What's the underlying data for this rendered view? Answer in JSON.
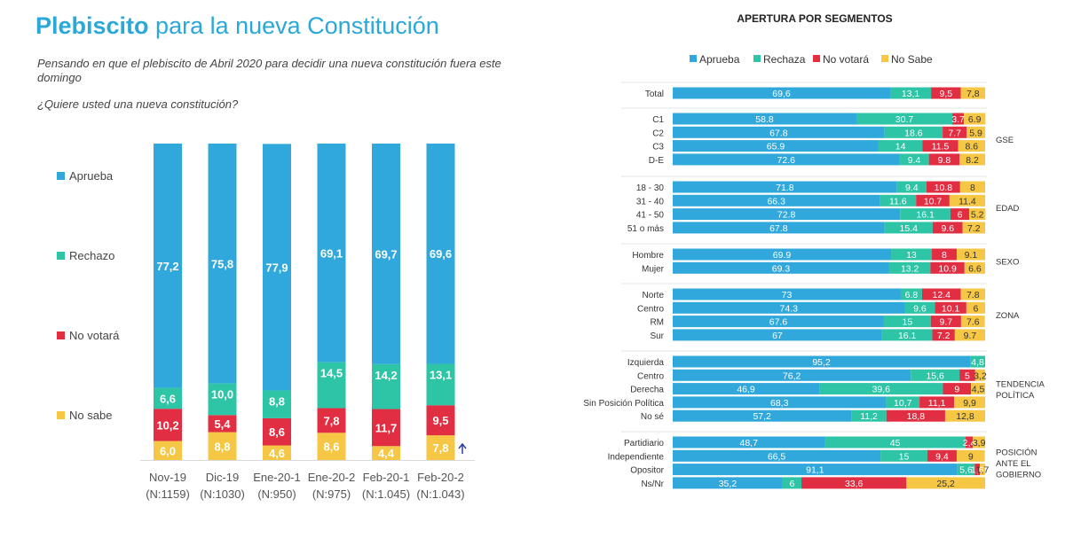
{
  "colors": {
    "aprueba": "#31a8dc",
    "rechazo": "#2ec4a6",
    "no_votara": "#e12e43",
    "no_sabe": "#f6c744",
    "title_blue": "#2aa8d8",
    "arrow": "#2c3e9c"
  },
  "header": {
    "title_bold": "Plebiscito",
    "title_rest": " para la nueva Constitución",
    "subtitle": "Pensando en que el plebiscito de Abril 2020 para decidir una nueva constitución fuera este domingo",
    "question": "¿Quiere usted una nueva constitución?"
  },
  "chart_data": [
    {
      "type": "bar",
      "stacked": true,
      "title": "¿Quiere usted una nueva constitución?",
      "categories": [
        "Nov-19",
        "Dic-19",
        "Ene-20-1",
        "Ene-20-2",
        "Feb-20-1",
        "Feb-20-2"
      ],
      "sample_labels": [
        "(N:1159)",
        "(N:1030)",
        "(N:950)",
        "(N:975)",
        "(N:1.045)",
        "(N:1.043)"
      ],
      "series": [
        {
          "name": "No sabe",
          "key": "no_sabe",
          "values": [
            6.0,
            8.8,
            4.6,
            8.6,
            4.4,
            7.8
          ],
          "labels": [
            "6,0",
            "8,8",
            "4,6",
            "8,6",
            "4,4",
            "7,8"
          ]
        },
        {
          "name": "No votará",
          "key": "no_votara",
          "values": [
            10.2,
            5.4,
            8.6,
            7.8,
            11.7,
            9.5
          ],
          "labels": [
            "10,2",
            "5,4",
            "8,6",
            "7,8",
            "11,7",
            "9,5"
          ]
        },
        {
          "name": "Rechazo",
          "key": "rechazo",
          "values": [
            6.6,
            10.0,
            8.8,
            14.5,
            14.2,
            13.1
          ],
          "labels": [
            "6,6",
            "10,0",
            "8,8",
            "14,5",
            "14,2",
            "13,1"
          ]
        },
        {
          "name": "Aprueba",
          "key": "aprueba",
          "values": [
            77.2,
            75.8,
            77.9,
            69.1,
            69.7,
            69.6
          ],
          "labels": [
            "77,2",
            "75,8",
            "77,9",
            "69,1",
            "69,7",
            "69,6"
          ]
        }
      ],
      "legend": [
        "Aprueba",
        "Rechazo",
        "No votará",
        "No sabe"
      ],
      "ylim": [
        0,
        100
      ]
    },
    {
      "type": "bar",
      "orientation": "horizontal",
      "stacked": true,
      "title": "APERTURA POR SEGMENTOS",
      "legend": [
        "Aprueba",
        "Rechaza",
        "No votará",
        "No Sabe"
      ],
      "groups": [
        {
          "label": "",
          "rows": [
            {
              "label": "Total",
              "values": [
                69.6,
                13.1,
                9.5,
                7.8
              ],
              "texts": [
                "69,6",
                "13,1",
                "9,5",
                "7,8"
              ]
            }
          ]
        },
        {
          "label": "GSE",
          "rows": [
            {
              "label": "C1",
              "values": [
                58.8,
                30.7,
                3.7,
                6.9
              ],
              "texts": [
                "58.8",
                "30.7",
                "3.7",
                "6.9"
              ]
            },
            {
              "label": "C2",
              "values": [
                67.8,
                18.6,
                7.7,
                5.9
              ],
              "texts": [
                "67.8",
                "18.6",
                "7.7",
                "5.9"
              ]
            },
            {
              "label": "C3",
              "values": [
                65.9,
                14,
                11.5,
                8.6
              ],
              "texts": [
                "65.9",
                "14",
                "11.5",
                "8.6"
              ]
            },
            {
              "label": "D-E",
              "values": [
                72.6,
                9.4,
                9.8,
                8.2
              ],
              "texts": [
                "72.6",
                "9.4",
                "9.8",
                "8.2"
              ]
            }
          ]
        },
        {
          "label": "EDAD",
          "rows": [
            {
              "label": "18 - 30",
              "values": [
                71.8,
                9.4,
                10.8,
                8
              ],
              "texts": [
                "71.8",
                "9.4",
                "10.8",
                "8"
              ]
            },
            {
              "label": "31 - 40",
              "values": [
                66.3,
                11.6,
                10.7,
                11.4
              ],
              "texts": [
                "66.3",
                "11.6",
                "10.7",
                "11.4"
              ]
            },
            {
              "label": "41 - 50",
              "values": [
                72.8,
                16.1,
                6,
                5.2
              ],
              "texts": [
                "72.8",
                "16.1",
                "6",
                "5.2"
              ]
            },
            {
              "label": "51 o más",
              "values": [
                67.8,
                15.4,
                9.6,
                7.2
              ],
              "texts": [
                "67.8",
                "15.4",
                "9.6",
                "7.2"
              ]
            }
          ]
        },
        {
          "label": "SEXO",
          "rows": [
            {
              "label": "Hombre",
              "values": [
                69.9,
                13,
                8,
                9.1
              ],
              "texts": [
                "69.9",
                "13",
                "8",
                "9.1"
              ]
            },
            {
              "label": "Mujer",
              "values": [
                69.3,
                13.2,
                10.9,
                6.6
              ],
              "texts": [
                "69.3",
                "13.2",
                "10.9",
                "6.6"
              ]
            }
          ]
        },
        {
          "label": "ZONA",
          "rows": [
            {
              "label": "Norte",
              "values": [
                73,
                6.8,
                12.4,
                7.8
              ],
              "texts": [
                "73",
                "6.8",
                "12.4",
                "7.8"
              ]
            },
            {
              "label": "Centro",
              "values": [
                74.3,
                9.6,
                10.1,
                6
              ],
              "texts": [
                "74.3",
                "9.6",
                "10.1",
                "6"
              ]
            },
            {
              "label": "RM",
              "values": [
                67.6,
                15,
                9.7,
                7.6
              ],
              "texts": [
                "67.6",
                "15",
                "9.7",
                "7.6"
              ]
            },
            {
              "label": "Sur",
              "values": [
                67,
                16.1,
                7.2,
                9.7
              ],
              "texts": [
                "67",
                "16.1",
                "7.2",
                "9.7"
              ]
            }
          ]
        },
        {
          "label": "TENDENCIA POLÍTICA",
          "rows": [
            {
              "label": "Izquierda",
              "values": [
                95.2,
                4.8,
                0,
                0
              ],
              "texts": [
                "95,2",
                "4,8",
                "",
                ""
              ]
            },
            {
              "label": "Centro",
              "values": [
                76.2,
                15.6,
                5,
                3.2
              ],
              "texts": [
                "76,2",
                "15,6",
                "5",
                "3,2"
              ]
            },
            {
              "label": "Derecha",
              "values": [
                46.9,
                39.6,
                9,
                4.5
              ],
              "texts": [
                "46,9",
                "39,6",
                "9",
                "4,5"
              ]
            },
            {
              "label": "Sin Posición Política",
              "values": [
                68.3,
                10.7,
                11.1,
                9.9
              ],
              "texts": [
                "68,3",
                "10,7",
                "11,1",
                "9,9"
              ]
            },
            {
              "label": "No sé",
              "values": [
                57.2,
                11.2,
                18.8,
                12.8
              ],
              "texts": [
                "57,2",
                "11,2",
                "18,8",
                "12,8"
              ]
            }
          ]
        },
        {
          "label": "POSICIÓN ANTE EL GOBIERNO",
          "rows": [
            {
              "label": "Partidiario",
              "values": [
                48.7,
                45,
                2.4,
                3.9
              ],
              "texts": [
                "48,7",
                "45",
                "2,4",
                "3,9"
              ]
            },
            {
              "label": "Independiente",
              "values": [
                66.5,
                15,
                9.4,
                9
              ],
              "texts": [
                "66,5",
                "15",
                "9,4",
                "9"
              ]
            },
            {
              "label": "Opositor",
              "values": [
                91.1,
                5.6,
                1.6,
                1.7
              ],
              "texts": [
                "91,1",
                "5,6",
                "1,6",
                "1,7"
              ]
            },
            {
              "label": "Ns/Nr",
              "values": [
                35.2,
                6,
                33.6,
                25.2
              ],
              "texts": [
                "35,2",
                "6",
                "33,6",
                "25,2"
              ]
            }
          ]
        }
      ],
      "xlim": [
        0,
        100
      ]
    }
  ]
}
